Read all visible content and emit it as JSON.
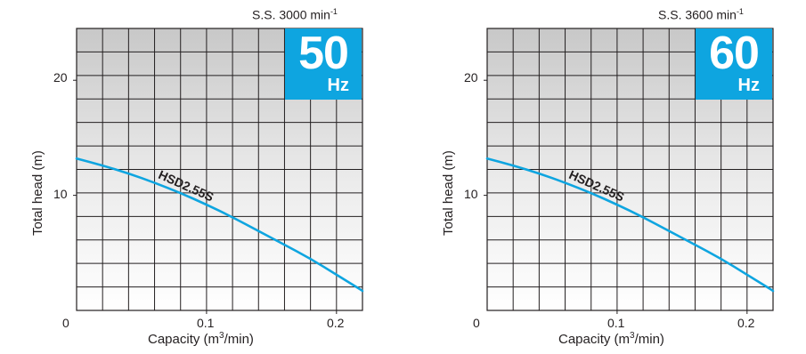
{
  "chart_data": [
    {
      "type": "line",
      "speed_label": "S.S. 3000 min",
      "speed_sup": "-1",
      "badge_value": "50",
      "badge_unit": "Hz",
      "xlabel_main": "Capacity (m",
      "xlabel_sup": "3",
      "xlabel_tail": "/min)",
      "ylabel": "Total head (m)",
      "xlim": [
        0,
        0.22
      ],
      "ylim": [
        0,
        24.5
      ],
      "x_ticks": [
        "0.1",
        "0.2"
      ],
      "x_tick_values": [
        0.1,
        0.2
      ],
      "y_ticks": [
        "10",
        "20"
      ],
      "y_tick_values": [
        10,
        20
      ],
      "origin_label": "0",
      "grid": true,
      "accent_color": "#0ea5e0",
      "series": [
        {
          "name": "HSD2.55S",
          "x": [
            0,
            0.02,
            0.04,
            0.06,
            0.08,
            0.1,
            0.12,
            0.14,
            0.16,
            0.18,
            0.2,
            0.22
          ],
          "y": [
            13.2,
            12.6,
            11.9,
            11.1,
            10.2,
            9.2,
            8.1,
            6.9,
            5.7,
            4.5,
            3.1,
            1.7
          ]
        }
      ]
    },
    {
      "type": "line",
      "speed_label": "S.S. 3600 min",
      "speed_sup": "-1",
      "badge_value": "60",
      "badge_unit": "Hz",
      "xlabel_main": "Capacity (m",
      "xlabel_sup": "3",
      "xlabel_tail": "/min)",
      "ylabel": "Total head (m)",
      "xlim": [
        0,
        0.22
      ],
      "ylim": [
        0,
        24.5
      ],
      "x_ticks": [
        "0.1",
        "0.2"
      ],
      "x_tick_values": [
        0.1,
        0.2
      ],
      "y_ticks": [
        "10",
        "20"
      ],
      "y_tick_values": [
        10,
        20
      ],
      "origin_label": "0",
      "grid": true,
      "accent_color": "#0ea5e0",
      "series": [
        {
          "name": "HSD2.55S",
          "x": [
            0,
            0.02,
            0.04,
            0.06,
            0.08,
            0.1,
            0.12,
            0.14,
            0.16,
            0.18,
            0.2,
            0.22
          ],
          "y": [
            13.2,
            12.6,
            11.9,
            11.1,
            10.2,
            9.2,
            8.1,
            6.9,
            5.7,
            4.5,
            3.1,
            1.7
          ]
        }
      ]
    }
  ]
}
